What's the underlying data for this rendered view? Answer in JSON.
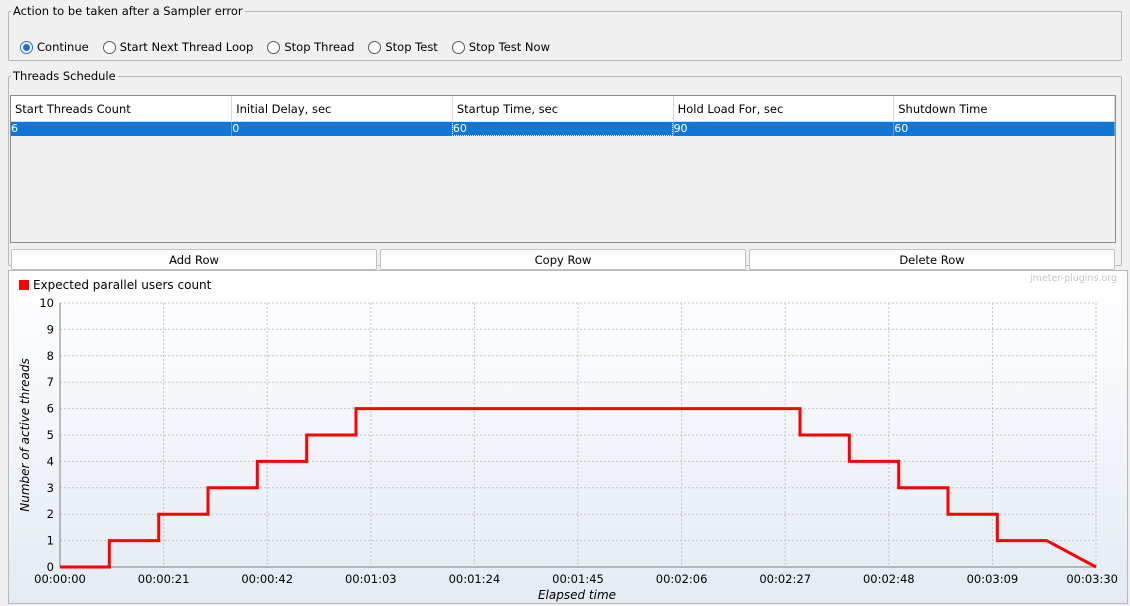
{
  "sampler_error": {
    "legend": "Action to be taken after a Sampler error",
    "options": [
      {
        "label": "Continue",
        "checked": true
      },
      {
        "label": "Start Next Thread Loop",
        "checked": false
      },
      {
        "label": "Stop Thread",
        "checked": false
      },
      {
        "label": "Stop Test",
        "checked": false
      },
      {
        "label": "Stop Test Now",
        "checked": false
      }
    ]
  },
  "threads_schedule": {
    "legend": "Threads Schedule",
    "columns": [
      "Start Threads Count",
      "Initial Delay, sec",
      "Startup Time, sec",
      "Hold Load For, sec",
      "Shutdown Time"
    ],
    "rows": [
      [
        "6",
        "0",
        "60",
        "90",
        "60"
      ]
    ],
    "buttons": {
      "add": "Add Row",
      "copy": "Copy Row",
      "delete": "Delete Row"
    }
  },
  "chart_data": {
    "type": "line",
    "title": "",
    "watermark": "jmeter-plugins.org",
    "xlabel": "Elapsed time",
    "ylabel": "Number of active threads",
    "legend_position": "top-left",
    "grid": true,
    "xlim_seconds": [
      0,
      210
    ],
    "ylim": [
      0,
      10
    ],
    "y_ticks": [
      "0",
      "1",
      "2",
      "3",
      "4",
      "5",
      "6",
      "7",
      "8",
      "9",
      "10"
    ],
    "x_tick_labels": [
      "00:00:00",
      "00:00:21",
      "00:00:42",
      "00:01:03",
      "00:01:24",
      "00:01:45",
      "00:02:06",
      "00:02:27",
      "00:02:48",
      "00:03:09",
      "00:03:30"
    ],
    "series": [
      {
        "name": "Expected parallel users count",
        "color": "#ff0000",
        "points": [
          [
            0,
            0
          ],
          [
            10,
            0
          ],
          [
            10,
            1
          ],
          [
            20,
            1
          ],
          [
            20,
            2
          ],
          [
            30,
            2
          ],
          [
            30,
            3
          ],
          [
            40,
            3
          ],
          [
            40,
            4
          ],
          [
            50,
            4
          ],
          [
            50,
            5
          ],
          [
            60,
            5
          ],
          [
            60,
            6
          ],
          [
            150,
            6
          ],
          [
            150,
            5
          ],
          [
            160,
            5
          ],
          [
            160,
            4
          ],
          [
            170,
            4
          ],
          [
            170,
            3
          ],
          [
            180,
            3
          ],
          [
            180,
            2
          ],
          [
            190,
            2
          ],
          [
            190,
            1
          ],
          [
            200,
            1
          ],
          [
            210,
            0
          ]
        ]
      }
    ]
  }
}
